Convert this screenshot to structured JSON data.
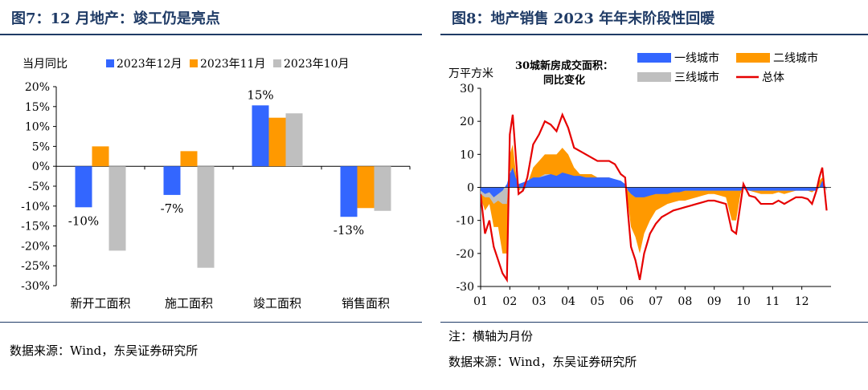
{
  "left": {
    "title": "图7：12 月地产：竣工仍是亮点",
    "source": "数据来源：Wind，东吴证券研究所"
  },
  "right": {
    "title": "图8：地产销售 2023 年年末阶段性回暖",
    "note": "注：横轴为月份",
    "source": "数据来源：Wind，东吴证券研究所"
  },
  "chart_data": [
    {
      "type": "bar",
      "title": "",
      "ylabel": "当月同比",
      "ylim": [
        -30,
        20
      ],
      "yticks": [
        "20%",
        "15%",
        "10%",
        "5%",
        "0%",
        "-5%",
        "-10%",
        "-15%",
        "-20%",
        "-25%",
        "-30%"
      ],
      "categories": [
        "新开工面积",
        "施工面积",
        "竣工面积",
        "销售面积"
      ],
      "series": [
        {
          "name": "2023年12月",
          "color": "#3366ff",
          "values": [
            -10.3,
            -7.2,
            15.3,
            -12.7
          ]
        },
        {
          "name": "2023年11月",
          "color": "#ff9900",
          "values": [
            5.0,
            3.8,
            12.2,
            -10.5
          ]
        },
        {
          "name": "2023年10月",
          "color": "#bfbfbf",
          "values": [
            -21.2,
            -25.5,
            13.3,
            -11.2
          ]
        }
      ],
      "data_labels": [
        "-10%",
        "-7%",
        "15%",
        "-13%"
      ],
      "legend": "top"
    },
    {
      "type": "area",
      "title": "30城新房成交面积：同比变化",
      "ylabel": "万平方米",
      "ylim": [
        -30,
        30
      ],
      "yticks": [
        "30",
        "20",
        "10",
        "0",
        "-10",
        "-20",
        "-30"
      ],
      "xticks": [
        "01",
        "02",
        "03",
        "04",
        "05",
        "06",
        "07",
        "08",
        "09",
        "10",
        "11",
        "12"
      ],
      "x": [
        1,
        1.15,
        1.3,
        1.45,
        1.6,
        1.75,
        1.9,
        2.0,
        2.1,
        2.2,
        2.3,
        2.45,
        2.6,
        2.8,
        3.0,
        3.2,
        3.4,
        3.6,
        3.8,
        4.0,
        4.2,
        4.4,
        4.6,
        4.8,
        5.0,
        5.2,
        5.4,
        5.6,
        5.8,
        5.95,
        6.05,
        6.15,
        6.3,
        6.45,
        6.6,
        6.8,
        7.0,
        7.2,
        7.4,
        7.6,
        7.8,
        8.0,
        8.2,
        8.4,
        8.6,
        8.8,
        9.0,
        9.2,
        9.4,
        9.6,
        9.75,
        9.9,
        10.0,
        10.2,
        10.4,
        10.6,
        10.8,
        11.0,
        11.2,
        11.4,
        11.6,
        11.8,
        12.0,
        12.2,
        12.35,
        12.5,
        12.6,
        12.7,
        12.85
      ],
      "series": [
        {
          "name": "一线城市",
          "color": "#3366ff",
          "values": [
            -1,
            -2,
            -1.5,
            -3,
            -2,
            -1,
            1,
            4,
            6,
            3,
            1,
            1.5,
            2,
            3,
            3,
            3.5,
            4,
            3.5,
            4.5,
            4,
            3.5,
            3.5,
            3,
            3,
            3,
            3,
            3,
            2.5,
            2,
            1,
            -1,
            -2,
            -3,
            -3,
            -3,
            -2.5,
            -2,
            -2,
            -2,
            -1.5,
            -1.5,
            -1,
            -1,
            -1,
            -1,
            -1,
            -1,
            -1,
            -1,
            -1,
            -1,
            -1,
            -0.5,
            -1,
            -1,
            -1,
            -1,
            -1,
            -1,
            -1,
            -1,
            -1,
            -1,
            -1,
            -1,
            -1,
            0,
            2,
            -0.5
          ]
        },
        {
          "name": "二线城市",
          "color": "#ff9900",
          "values": [
            -3,
            -7,
            -5,
            -12,
            -12,
            -20,
            -20,
            10,
            13,
            5,
            -1,
            0,
            1,
            6,
            8,
            10,
            10,
            10,
            12,
            10,
            6,
            4,
            4,
            4,
            3,
            3,
            3,
            2,
            1,
            1,
            -5,
            -12,
            -15,
            -20,
            -14,
            -10,
            -7,
            -6,
            -5,
            -4.5,
            -4,
            -4,
            -3.5,
            -3,
            -2.5,
            -2,
            -2,
            -2.5,
            -3,
            -10,
            -10,
            -2,
            0.5,
            -1,
            -1.5,
            -2,
            -2,
            -2,
            -1.5,
            -2,
            -1.5,
            -1,
            -1,
            -1,
            -1.5,
            -0.5,
            2,
            3,
            -1
          ]
        },
        {
          "name": "三线城市",
          "color": "#bfbfbf",
          "values": [
            -2,
            -3,
            -3,
            -5,
            -4,
            -5,
            -5,
            5,
            5,
            2,
            0,
            -1,
            0,
            2,
            3,
            4,
            4,
            3,
            3,
            3,
            2,
            2,
            2,
            1,
            1,
            1,
            1,
            1,
            0.5,
            0.5,
            -1,
            -2,
            -3,
            -3,
            -2,
            -2,
            -2,
            -1.5,
            -1.5,
            -1.5,
            -1,
            -1,
            -1,
            -1,
            -1,
            -1,
            -1,
            -1,
            -1,
            -1,
            -1,
            -1,
            0,
            -0.5,
            -0.5,
            -1,
            -1,
            -1,
            -1,
            -1,
            -1,
            -1,
            -1,
            -1,
            -1,
            -1,
            0,
            1,
            -1
          ]
        },
        {
          "name": "总体",
          "color": "#e60000",
          "values": [
            -2,
            -14,
            -10,
            -18,
            -22,
            -26,
            -28,
            16,
            22,
            10,
            -2,
            -1,
            3,
            13,
            16,
            20,
            19,
            17,
            22,
            18,
            12,
            11,
            10,
            9,
            8,
            8,
            8,
            7,
            4,
            3,
            -8,
            -18,
            -22,
            -28,
            -20,
            -14,
            -11,
            -9,
            -8,
            -7,
            -6.5,
            -6,
            -5.5,
            -5,
            -4.5,
            -4,
            -4,
            -4.5,
            -5,
            -13,
            -14,
            -5,
            1,
            -2.5,
            -3,
            -5,
            -5,
            -5,
            -4,
            -5,
            -4,
            -3,
            -3,
            -3.5,
            -5,
            -1,
            3,
            6,
            -7
          ]
        }
      ],
      "legend": "top-right"
    }
  ]
}
